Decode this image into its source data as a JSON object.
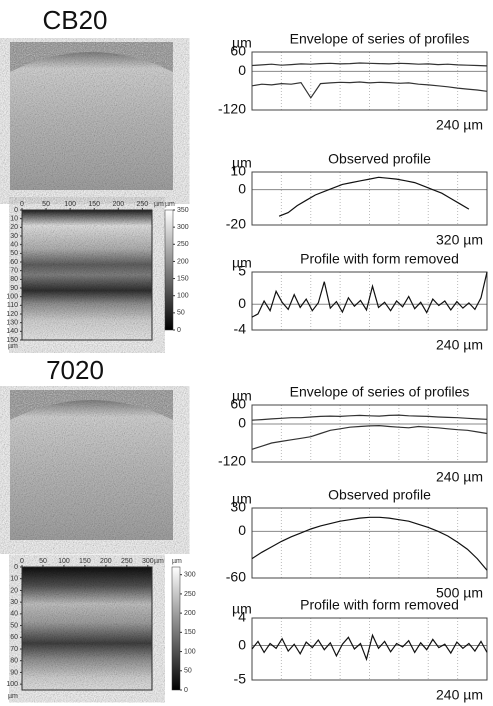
{
  "figures": [
    {
      "label": "CB20",
      "heatmap": {
        "x_unit": "µm",
        "y_unit": "µm",
        "xlim": [
          0,
          270
        ],
        "xticks": [
          0,
          50,
          100,
          150,
          200,
          250
        ],
        "ylim": [
          0,
          150
        ],
        "yticks": [
          0,
          10,
          20,
          30,
          40,
          50,
          60,
          70,
          80,
          90,
          100,
          110,
          120,
          130,
          140,
          150
        ],
        "colorbar_unit": "µm",
        "colorbar_lim": [
          0,
          350
        ],
        "colorbar_ticks": [
          0,
          50,
          100,
          150,
          200,
          250,
          300,
          350
        ]
      },
      "plots": [
        {
          "type": "line",
          "title": "Envelope of series of profiles",
          "y_unit": "µm",
          "x_label": "240 µm",
          "ylim": [
            -120,
            60
          ],
          "yticks": [
            60,
            0,
            -120
          ],
          "series": [
            {
              "color": "#333333",
              "values": [
                18,
                20,
                22,
                19,
                21,
                23,
                22,
                24,
                25,
                23,
                24,
                26,
                25,
                24,
                23,
                25,
                24,
                22,
                23,
                21,
                22,
                20,
                19,
                18,
                17
              ]
            },
            {
              "color": "#333333",
              "values": [
                -45,
                -40,
                -42,
                -38,
                -40,
                -35,
                -82,
                -38,
                -36,
                -34,
                -35,
                -33,
                -36,
                -34,
                -35,
                -37,
                -36,
                -40,
                -42,
                -45,
                -48,
                -52,
                -55,
                -58,
                -62
              ]
            }
          ]
        },
        {
          "type": "line",
          "title": "Observed profile",
          "y_unit": "µm",
          "x_label": "320 µm",
          "ylim": [
            -20,
            10
          ],
          "yticks": [
            10,
            0,
            -20
          ],
          "series": [
            {
              "color": "#111111",
              "values": [
                null,
                null,
                null,
                -15,
                -13,
                -9,
                -6,
                -3,
                -1,
                1,
                3,
                4,
                5,
                6,
                7,
                6.5,
                6,
                5,
                4,
                2,
                0,
                -2,
                -5,
                -8,
                -11,
                null,
                null
              ]
            }
          ]
        },
        {
          "type": "line",
          "title": "Profile with form removed",
          "y_unit": "µm",
          "x_label": "240 µm",
          "ylim": [
            -4,
            5
          ],
          "yticks": [
            5,
            0,
            -4
          ],
          "series": [
            {
              "color": "#111111",
              "values": [
                -2,
                -1.5,
                0.5,
                -1,
                2,
                0.3,
                -0.8,
                1.5,
                -0.5,
                0.8,
                -1,
                0.2,
                3.5,
                -0.6,
                0.4,
                -1.2,
                1,
                -0.3,
                0.6,
                -0.9,
                2.8,
                -0.5,
                0.3,
                -1,
                0.5,
                -0.4,
                1.2,
                -0.7,
                0.3,
                -1.3,
                0.8,
                -0.2,
                0.5,
                -0.9,
                0.4,
                -0.6,
                0.2,
                -0.8,
                1,
                5
              ]
            }
          ]
        }
      ]
    },
    {
      "label": "7020",
      "heatmap": {
        "x_unit": "µm",
        "y_unit": "µm",
        "xlim": [
          0,
          310
        ],
        "xticks": [
          0,
          50,
          100,
          150,
          200,
          250,
          300
        ],
        "ylim": [
          0,
          105
        ],
        "yticks": [
          0,
          10,
          20,
          30,
          40,
          50,
          60,
          70,
          80,
          90,
          100
        ],
        "colorbar_unit": "µm",
        "colorbar_lim": [
          0,
          320
        ],
        "colorbar_ticks": [
          0,
          50,
          100,
          150,
          200,
          250,
          300
        ]
      },
      "plots": [
        {
          "type": "line",
          "title": "Envelope of series of profiles",
          "y_unit": "µm",
          "x_label": "240 µm",
          "ylim": [
            -120,
            60
          ],
          "yticks": [
            60,
            0,
            -120
          ],
          "series": [
            {
              "color": "#333333",
              "values": [
                12,
                14,
                16,
                18,
                20,
                20,
                22,
                24,
                25,
                24,
                26,
                27,
                26,
                25,
                27,
                28,
                26,
                25,
                24,
                22,
                21,
                20,
                18,
                16,
                15
              ]
            },
            {
              "color": "#333333",
              "values": [
                -80,
                -70,
                -60,
                -55,
                -50,
                -45,
                -40,
                -30,
                -20,
                -15,
                -10,
                -8,
                -6,
                -5,
                -8,
                -10,
                -12,
                -8,
                -10,
                -12,
                -15,
                -18,
                -20,
                -25,
                -30
              ]
            }
          ]
        },
        {
          "type": "line",
          "title": "Observed profile",
          "y_unit": "µm",
          "x_label": "500 µm",
          "ylim": [
            -60,
            30
          ],
          "yticks": [
            30,
            0,
            -60
          ],
          "series": [
            {
              "color": "#111111",
              "values": [
                -35,
                -27,
                -20,
                -13,
                -7,
                -2,
                3,
                7,
                10,
                13,
                15,
                17,
                18,
                18,
                17,
                15,
                13,
                9,
                5,
                0,
                -6,
                -14,
                -23,
                -35,
                -50
              ]
            }
          ]
        },
        {
          "type": "line",
          "title": "Profile with form removed",
          "y_unit": "µm",
          "x_label": "240 µm",
          "ylim": [
            -5,
            4
          ],
          "yticks": [
            4,
            0,
            -5
          ],
          "series": [
            {
              "color": "#111111",
              "values": [
                -0.5,
                0.6,
                -1,
                0.3,
                -0.4,
                1,
                -0.8,
                0.2,
                -1.2,
                0.5,
                -0.3,
                0.8,
                -0.6,
                0.4,
                -1.5,
                0.2,
                1.2,
                -0.5,
                0.3,
                -2,
                1.5,
                -0.4,
                0.6,
                -0.9,
                0.3,
                -0.2,
                0.7,
                -1,
                0.4,
                -0.6,
                0.9,
                -0.3,
                0.2,
                -1.1,
                0.5,
                -0.4,
                0.3,
                -0.8,
                0.6,
                -1
              ]
            }
          ]
        }
      ]
    }
  ]
}
